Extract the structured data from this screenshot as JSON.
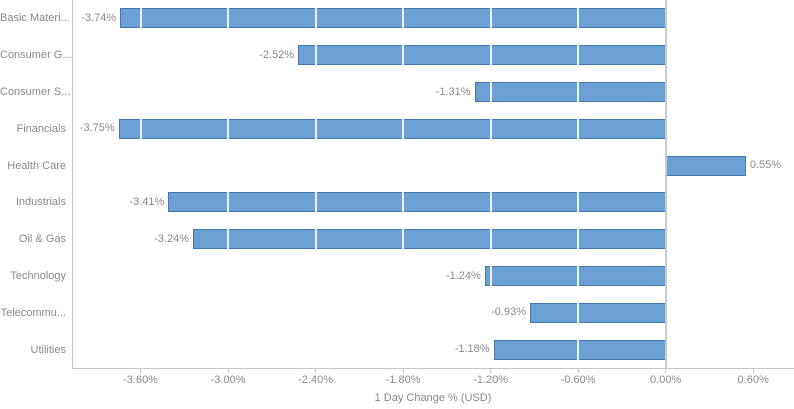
{
  "chart_data": {
    "type": "bar",
    "orientation": "horizontal",
    "title": "",
    "xlabel": "1 Day Change % (USD)",
    "ylabel": "",
    "categories": [
      "Basic Materi...",
      "Consumer G...",
      "Consumer S...",
      "Financials",
      "Health Care",
      "Industrials",
      "Oil & Gas",
      "Technology",
      "Telecommu...",
      "Utilities"
    ],
    "values": [
      -3.74,
      -2.52,
      -1.31,
      -3.75,
      0.55,
      -3.41,
      -3.24,
      -1.24,
      -0.93,
      -1.18
    ],
    "data_labels": [
      "-3.74%",
      "-2.52%",
      "-1.31%",
      "-3.75%",
      "0.55%",
      "-3.41%",
      "-3.24%",
      "-1.24%",
      "-0.93%",
      "-1.18%"
    ],
    "x_tick_labels": [
      "-3.60%",
      "-3.00%",
      "-2.40%",
      "-1.80%",
      "-1.20%",
      "-0.60%",
      "0.00%",
      "0.60%"
    ],
    "x_tick_values": [
      -3.6,
      -3.0,
      -2.4,
      -1.8,
      -1.2,
      -0.6,
      0.0,
      0.6
    ],
    "xlim": [
      -4.07,
      0.88
    ],
    "legend": "none",
    "grid": "vertical-white-gridlines-over-bars",
    "colors": {
      "bar_fill": "#6AA0D4",
      "bar_border": "#4478B4",
      "axis_line": "#C8C8C8",
      "text": "#8A8A8A",
      "background": "#FFFFFF"
    }
  }
}
